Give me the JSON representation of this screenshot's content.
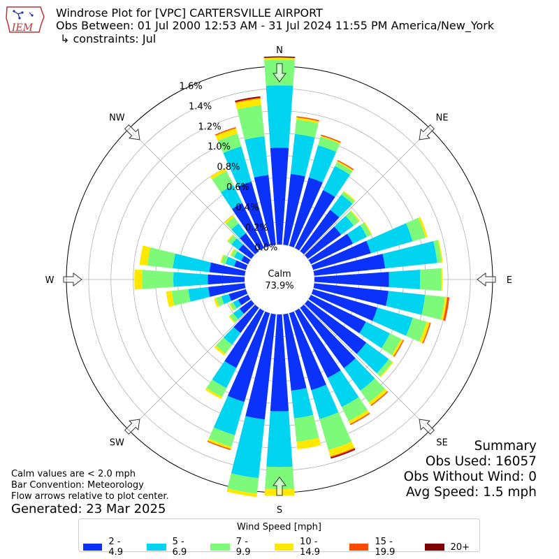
{
  "header": {
    "title": "Windrose Plot for [VPC] CARTERSVILLE AIRPORT",
    "obs_between": "Obs Between: 01 Jul 2000 12:53 AM - 31 Jul 2024 11:55 PM America/New_York",
    "constraints": "↳ constraints: Jul",
    "logo_text": "IEM"
  },
  "summary": {
    "heading": "Summary",
    "obs_used": "Obs Used: 16057",
    "obs_without_wind": "Obs Without Wind: 0",
    "avg_speed": "Avg Speed: 1.5 mph"
  },
  "notes": {
    "calm_def": "Calm values are < 2.0 mph",
    "bar_convention": "Bar Convention: Meteorology",
    "flow_arrows": "Flow arrows relative to plot center.",
    "generated": "Generated: 23 Mar 2025"
  },
  "chart_data": {
    "type": "windrose",
    "calm": {
      "label": "Calm",
      "value": "73.9%"
    },
    "radial_ticks": [
      "0.0%",
      "0.2%",
      "0.4%",
      "0.6%",
      "0.8%",
      "1.0%",
      "1.2%",
      "1.4%",
      "1.6%"
    ],
    "radial_max": 1.6,
    "compass_labels": [
      "N",
      "NE",
      "E",
      "SE",
      "S",
      "SW",
      "W",
      "NW"
    ],
    "legend_title": "Wind Speed [mph]",
    "speed_bins": [
      {
        "label": "2 - 4.9",
        "color": "#0a32fa"
      },
      {
        "label": "5 - 6.9",
        "color": "#00d4f0"
      },
      {
        "label": "7 - 9.9",
        "color": "#7dfa7a"
      },
      {
        "label": "10 - 14.9",
        "color": "#ffe800"
      },
      {
        "label": "15 - 19.9",
        "color": "#ff4a05"
      },
      {
        "label": "20+",
        "color": "#800000"
      }
    ],
    "directions": [
      0,
      10,
      20,
      30,
      40,
      50,
      60,
      70,
      80,
      90,
      100,
      110,
      120,
      130,
      140,
      150,
      160,
      170,
      180,
      190,
      200,
      210,
      220,
      230,
      240,
      250,
      260,
      270,
      280,
      290,
      300,
      310,
      320,
      330,
      340,
      350
    ],
    "cumulative_percent": [
      [
        0.87,
        1.43,
        1.66,
        1.68,
        1.68,
        1.69
      ],
      [
        0.64,
        1.0,
        1.13,
        1.15,
        1.16,
        1.16
      ],
      [
        0.64,
        0.94,
        1.02,
        1.03,
        1.04,
        1.04
      ],
      [
        0.58,
        0.82,
        0.86,
        0.87,
        0.88,
        0.88
      ],
      [
        0.46,
        0.63,
        0.66,
        0.67,
        0.67,
        0.67
      ],
      [
        0.37,
        0.51,
        0.57,
        0.58,
        0.58,
        0.58
      ],
      [
        0.42,
        0.56,
        0.6,
        0.61,
        0.61,
        0.61
      ],
      [
        0.54,
        0.93,
        1.05,
        1.07,
        1.07,
        1.07
      ],
      [
        0.64,
        1.11,
        1.15,
        1.16,
        1.16,
        1.16
      ],
      [
        0.67,
        0.95,
        1.14,
        1.15,
        1.15,
        1.15
      ],
      [
        0.67,
        1.0,
        1.18,
        1.2,
        1.22,
        1.22
      ],
      [
        0.6,
        0.93,
        1.06,
        1.09,
        1.1,
        1.1
      ],
      [
        0.55,
        0.79,
        0.9,
        0.92,
        0.93,
        0.93
      ],
      [
        0.65,
        0.9,
        0.94,
        0.95,
        0.95,
        0.95
      ],
      [
        0.67,
        0.92,
        1.05,
        1.08,
        1.09,
        1.09
      ],
      [
        0.67,
        0.96,
        1.1,
        1.13,
        1.14,
        1.14
      ],
      [
        0.72,
        0.99,
        1.28,
        1.34,
        1.35,
        1.36
      ],
      [
        0.69,
        0.94,
        1.15,
        1.22,
        1.22,
        1.22
      ],
      [
        0.87,
        1.37,
        1.57,
        1.63,
        1.63,
        1.63
      ],
      [
        0.95,
        1.48,
        1.62,
        1.65,
        1.65,
        1.65
      ],
      [
        0.83,
        1.14,
        1.25,
        1.27,
        1.28,
        1.28
      ],
      [
        0.57,
        0.77,
        0.86,
        0.88,
        0.88,
        0.88
      ],
      [
        0.28,
        0.41,
        0.51,
        0.53,
        0.53,
        0.53
      ],
      [
        0.13,
        0.2,
        0.24,
        0.25,
        0.25,
        0.25
      ],
      [
        0.1,
        0.15,
        0.18,
        0.19,
        0.19,
        0.19
      ],
      [
        0.16,
        0.23,
        0.28,
        0.3,
        0.3,
        0.3
      ],
      [
        0.33,
        0.51,
        0.66,
        0.71,
        0.71,
        0.71
      ],
      [
        0.33,
        0.64,
        0.92,
        0.99,
        0.99,
        0.99
      ],
      [
        0.32,
        0.65,
        0.88,
        0.95,
        0.95,
        0.95
      ],
      [
        0.11,
        0.19,
        0.23,
        0.24,
        0.24,
        0.24
      ],
      [
        0.07,
        0.14,
        0.17,
        0.18,
        0.18,
        0.18
      ],
      [
        0.14,
        0.22,
        0.26,
        0.27,
        0.27,
        0.27
      ],
      [
        0.2,
        0.31,
        0.38,
        0.4,
        0.4,
        0.4
      ],
      [
        0.45,
        0.63,
        0.77,
        0.8,
        0.8,
        0.8
      ],
      [
        0.6,
        0.93,
        1.05,
        1.1,
        1.11,
        1.11
      ],
      [
        0.63,
        0.98,
        1.26,
        1.32,
        1.33,
        1.34
      ]
    ]
  }
}
